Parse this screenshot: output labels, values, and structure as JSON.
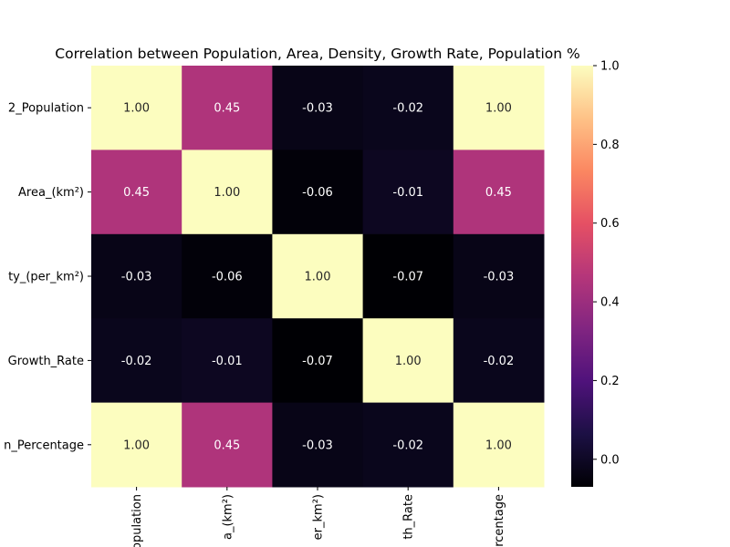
{
  "chart_data": {
    "type": "heatmap",
    "title": "Correlation between Population, Area, Density, Growth Rate, Population %",
    "row_labels": [
      "2_Population",
      "Area_(km²)",
      "ty_(per_km²)",
      "Growth_Rate",
      "n_Percentage"
    ],
    "col_labels": [
      "opulation",
      "a_(km²)",
      "er_km²)",
      "th_Rate",
      "rcentage"
    ],
    "values": [
      [
        1.0,
        0.45,
        -0.03,
        -0.02,
        1.0
      ],
      [
        0.45,
        1.0,
        -0.06,
        -0.01,
        0.45
      ],
      [
        -0.03,
        -0.06,
        1.0,
        -0.07,
        -0.03
      ],
      [
        -0.02,
        -0.01,
        -0.07,
        1.0,
        -0.02
      ],
      [
        1.0,
        0.45,
        -0.03,
        -0.02,
        1.0
      ]
    ],
    "colorscale": "magma",
    "colorbar": {
      "range": [
        -0.07,
        1.0
      ],
      "ticks": [
        "0.0",
        "0.2",
        "0.4",
        "0.6",
        "0.8",
        "1.0"
      ],
      "tick_values": [
        0.0,
        0.2,
        0.4,
        0.6,
        0.8,
        1.0
      ]
    },
    "annotation_format": "2 decimals"
  }
}
